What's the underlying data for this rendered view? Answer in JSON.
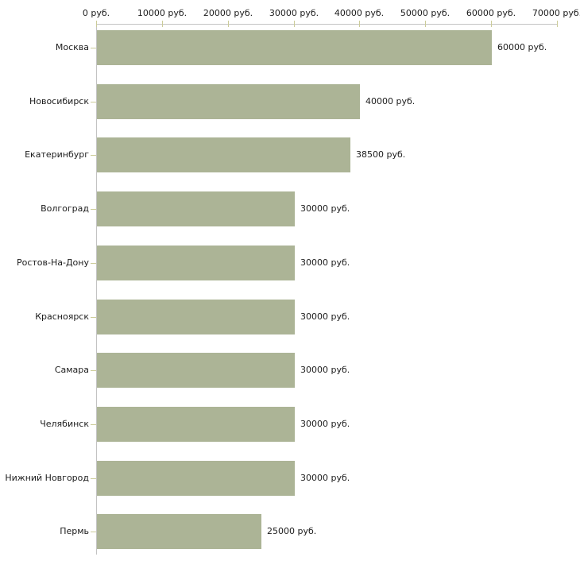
{
  "chart_data": {
    "type": "bar",
    "orientation": "horizontal",
    "title": "",
    "xlabel": "",
    "ylabel": "",
    "unit": "руб.",
    "grid": false,
    "legend_position": "none",
    "xlim": [
      0,
      70000
    ],
    "x_ticks": [
      0,
      10000,
      20000,
      30000,
      40000,
      50000,
      60000,
      70000
    ],
    "x_tick_labels": [
      "0 руб.",
      "10000 руб.",
      "20000 руб.",
      "30000 руб.",
      "40000 руб.",
      "50000 руб.",
      "60000 руб.",
      "70000 руб."
    ],
    "categories": [
      "Москва",
      "Новосибирск",
      "Екатеринбург",
      "Волгоград",
      "Ростов-На-Дону",
      "Красноярск",
      "Самара",
      "Челябинск",
      "Нижний Новгород",
      "Пермь"
    ],
    "values": [
      60000,
      40000,
      38500,
      30000,
      30000,
      30000,
      30000,
      30000,
      30000,
      25000
    ],
    "value_labels": [
      "60000 руб.",
      "40000 руб.",
      "38500 руб.",
      "30000 руб.",
      "30000 руб.",
      "30000 руб.",
      "30000 руб.",
      "30000 руб.",
      "30000 руб.",
      "25000 руб."
    ],
    "colors": {
      "bar_fill": "#acb496",
      "axis_line": "#c3c3c3",
      "tick_mark": "#cccc99",
      "text": "#1c1c1c",
      "background": "#ffffff"
    }
  }
}
